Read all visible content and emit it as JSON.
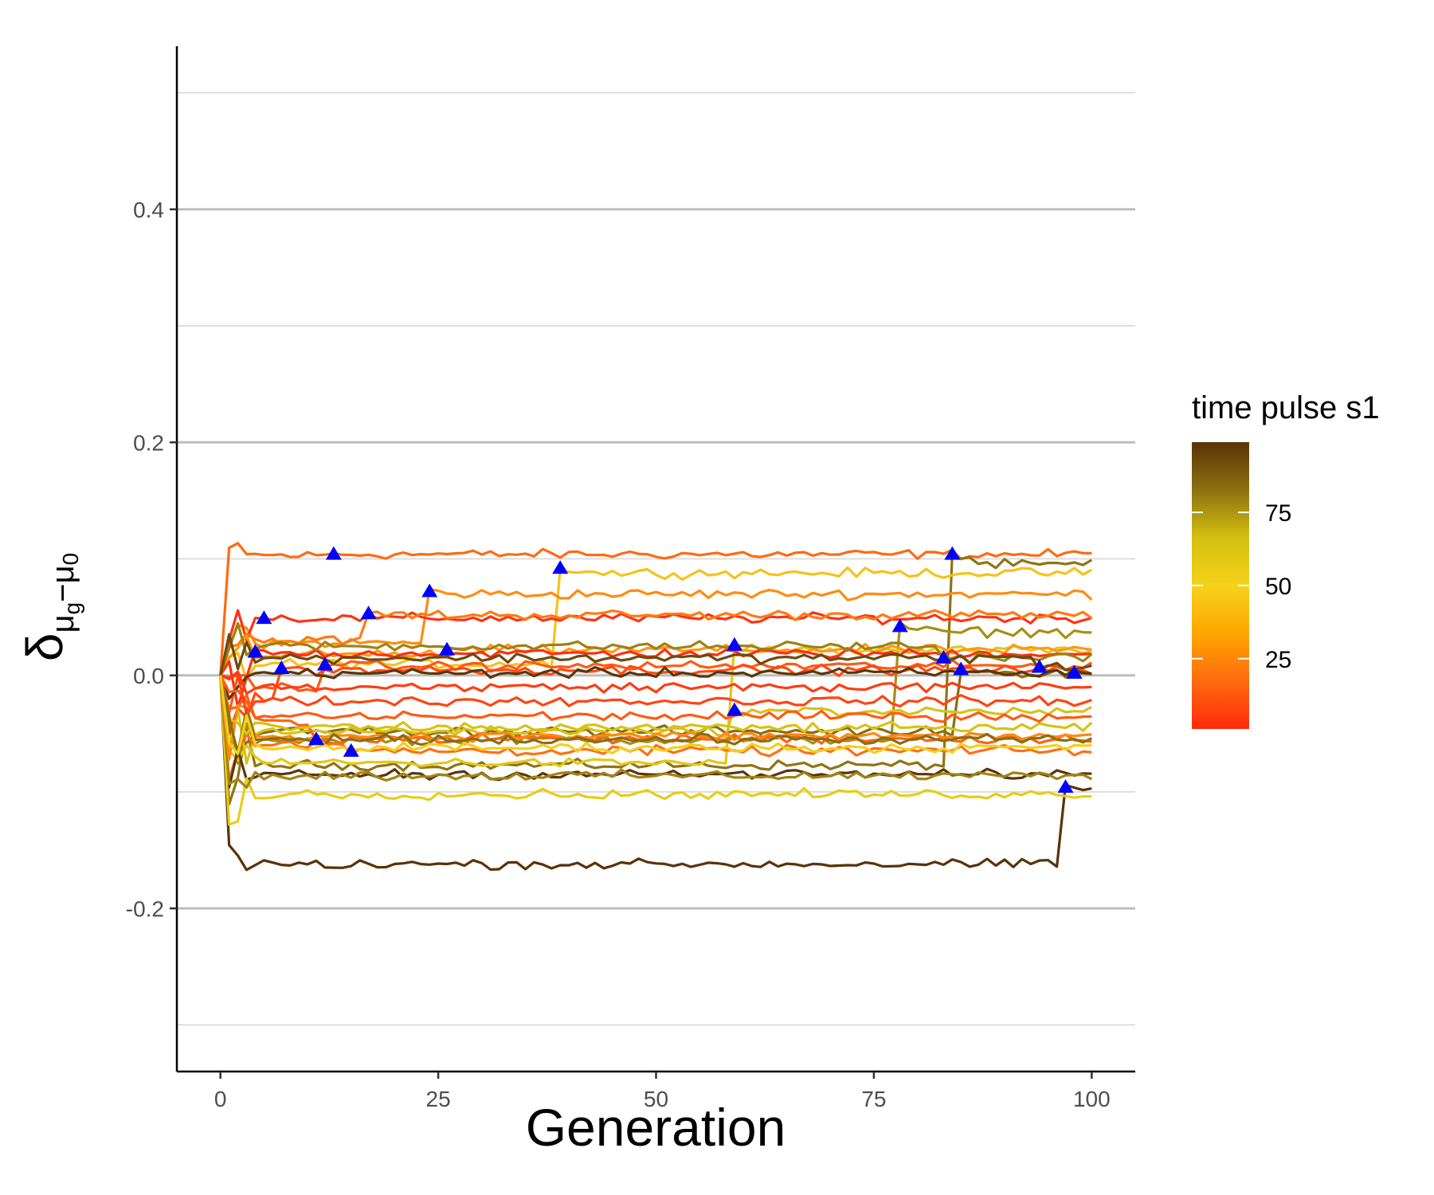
{
  "chart_data": {
    "type": "line",
    "title": "",
    "xlabel": "Generation",
    "ylabel": "δμg−μ0",
    "ylabel_parts": {
      "main": "δ",
      "sub_a": "μ",
      "sub_sub": "g",
      "minus": "−",
      "sub_b": "μ",
      "sub_b_sub": "0"
    },
    "xlim": [
      -5,
      105
    ],
    "ylim": [
      -0.34,
      0.54
    ],
    "x_ticks": [
      0,
      25,
      50,
      75,
      100
    ],
    "x_tick_labels": [
      "0",
      "25",
      "50",
      "75",
      "100"
    ],
    "y_ticks": [
      -0.2,
      0.0,
      0.2,
      0.4
    ],
    "y_tick_labels": [
      "-0.2",
      "0.0",
      "0.2",
      "0.4"
    ],
    "y_minor_gridlines": [
      -0.3,
      -0.1,
      0.1,
      0.3,
      0.5
    ],
    "grid": "horizontal",
    "legend": {
      "title": "time pulse s1",
      "type": "colorbar",
      "placement": "right",
      "range": [
        1,
        99
      ],
      "tick_values": [
        25,
        50,
        75
      ],
      "tick_labels": [
        "25",
        "50",
        "75"
      ],
      "colors": [
        "#ff2a0a",
        "#ff6a10",
        "#ffa500",
        "#f5d21a",
        "#d4c010",
        "#8c7010",
        "#5a3208"
      ]
    },
    "pulse_marker_color": "#0000ff",
    "series": [
      {
        "t": 13,
        "base": 0.103,
        "pulse": 0.104,
        "color": "#ff6a12"
      },
      {
        "t": 84,
        "base": -0.077,
        "pulse": 0.104,
        "color": "#907412"
      },
      {
        "t": 39,
        "base": 0.01,
        "pulse": 0.092,
        "color": "#f6c21a"
      },
      {
        "t": 24,
        "base": 0.028,
        "pulse": 0.072,
        "color": "#ff8c10"
      },
      {
        "t": 5,
        "base": 0.051,
        "pulse": 0.049,
        "color": "#ff3212"
      },
      {
        "t": 17,
        "base": 0.03,
        "pulse": 0.053,
        "color": "#ff7a10"
      },
      {
        "t": 78,
        "base": -0.055,
        "pulse": 0.042,
        "color": "#a88e12"
      },
      {
        "t": 59,
        "base": -0.075,
        "pulse": 0.026,
        "color": "#e2c818"
      },
      {
        "t": 26,
        "base": 0.018,
        "pulse": 0.022,
        "color": "#ff9810"
      },
      {
        "t": 4,
        "base": -0.003,
        "pulse": 0.02,
        "color": "#ff2e10"
      },
      {
        "t": 83,
        "base": 0.025,
        "pulse": 0.015,
        "color": "#9e8212"
      },
      {
        "t": 12,
        "base": -0.01,
        "pulse": 0.009,
        "color": "#ff5a12"
      },
      {
        "t": 7,
        "base": -0.02,
        "pulse": 0.006,
        "color": "#ff4a12"
      },
      {
        "t": 85,
        "base": -0.048,
        "pulse": 0.005,
        "color": "#8c6c10"
      },
      {
        "t": 94,
        "base": 0.015,
        "pulse": 0.007,
        "color": "#6c4a0e"
      },
      {
        "t": 98,
        "base": 0.002,
        "pulse": 0.002,
        "color": "#5a360a"
      },
      {
        "t": 59,
        "base": -0.048,
        "pulse": -0.03,
        "color": "#d8c216"
      },
      {
        "t": 11,
        "base": -0.04,
        "pulse": -0.055,
        "color": "#ff6212"
      },
      {
        "t": 15,
        "base": -0.06,
        "pulse": -0.065,
        "color": "#ff7012"
      },
      {
        "t": 97,
        "base": -0.162,
        "pulse": -0.096,
        "color": "#5a3208"
      },
      {
        "t": 99,
        "base": -0.085,
        "pulse": -0.085,
        "color": "#5c340a"
      },
      {
        "t": 99,
        "base": -0.102,
        "pulse": -0.102,
        "color": "#e8cc18"
      },
      {
        "t": 99,
        "base": -0.086,
        "pulse": -0.086,
        "color": "#a08412"
      },
      {
        "t": 99,
        "base": -0.052,
        "pulse": -0.052,
        "color": "#ff8812"
      },
      {
        "t": 99,
        "base": -0.045,
        "pulse": -0.045,
        "color": "#d6c214"
      },
      {
        "t": 99,
        "base": -0.055,
        "pulse": -0.055,
        "color": "#8a6e10"
      },
      {
        "t": 99,
        "base": -0.035,
        "pulse": -0.035,
        "color": "#ff5a12"
      },
      {
        "t": 99,
        "base": -0.022,
        "pulse": -0.022,
        "color": "#ff4412"
      },
      {
        "t": 99,
        "base": -0.01,
        "pulse": -0.01,
        "color": "#ff3c10"
      },
      {
        "t": 99,
        "base": -0.062,
        "pulse": -0.062,
        "color": "#f4d01a"
      }
    ]
  }
}
